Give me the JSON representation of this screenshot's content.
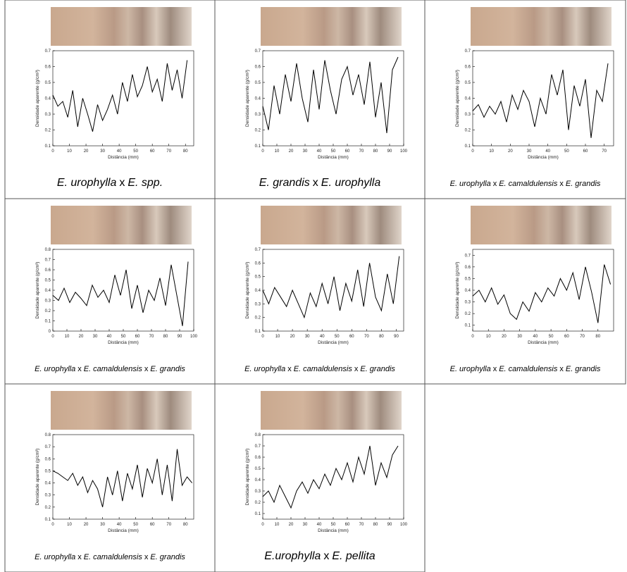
{
  "chart_data": [
    {
      "type": "line",
      "x_label": "Distância (mm)",
      "y_label": "Densidade aparente (g/cm³)",
      "caption": [
        "E. urophylla",
        "x",
        "E. spp."
      ],
      "color": "#000000",
      "x": [
        0,
        3,
        6,
        9,
        12,
        15,
        18,
        21,
        24,
        27,
        30,
        33,
        36,
        39,
        42,
        45,
        48,
        51,
        54,
        57,
        60,
        63,
        66,
        69,
        72,
        75,
        78,
        81
      ],
      "values": [
        0.42,
        0.35,
        0.38,
        0.28,
        0.45,
        0.22,
        0.4,
        0.3,
        0.19,
        0.36,
        0.26,
        0.33,
        0.42,
        0.3,
        0.5,
        0.38,
        0.55,
        0.41,
        0.48,
        0.6,
        0.44,
        0.52,
        0.38,
        0.62,
        0.45,
        0.58,
        0.4,
        0.64
      ],
      "xlim": [
        0,
        85
      ],
      "xticks": [
        0,
        10,
        20,
        30,
        40,
        50,
        60,
        70,
        80
      ],
      "ylim": [
        0.1,
        0.7
      ],
      "yticks": [
        0.1,
        0.2,
        0.3,
        0.4,
        0.5,
        0.6,
        0.7
      ]
    },
    {
      "type": "line",
      "x_label": "Distância (mm)",
      "y_label": "Densidade aparente (g/cm³)",
      "caption": [
        "E. grandis",
        "x",
        "E. urophylla"
      ],
      "color": "#000000",
      "x": [
        0,
        4,
        8,
        12,
        16,
        20,
        24,
        28,
        32,
        36,
        40,
        44,
        48,
        52,
        56,
        60,
        64,
        68,
        72,
        76,
        80,
        84,
        88,
        92,
        96
      ],
      "values": [
        0.35,
        0.2,
        0.48,
        0.3,
        0.55,
        0.38,
        0.62,
        0.4,
        0.25,
        0.58,
        0.33,
        0.64,
        0.45,
        0.3,
        0.52,
        0.6,
        0.42,
        0.55,
        0.36,
        0.63,
        0.28,
        0.5,
        0.18,
        0.58,
        0.66
      ],
      "xlim": [
        0,
        100
      ],
      "xticks": [
        0,
        10,
        20,
        30,
        40,
        50,
        60,
        70,
        80,
        90,
        100
      ],
      "ylim": [
        0.1,
        0.7
      ],
      "yticks": [
        0.1,
        0.2,
        0.3,
        0.4,
        0.5,
        0.6,
        0.7
      ]
    },
    {
      "type": "line",
      "x_label": "Distância (mm)",
      "y_label": "Densidade aparente (g/cm³)",
      "caption": [
        "E. urophylla",
        "x",
        "E. camaldulensis",
        "x",
        "E. grandis"
      ],
      "color": "#000000",
      "x": [
        0,
        3,
        6,
        9,
        12,
        15,
        18,
        21,
        24,
        27,
        30,
        33,
        36,
        39,
        42,
        45,
        48,
        51,
        54,
        57,
        60,
        63,
        66,
        69,
        72
      ],
      "values": [
        0.32,
        0.36,
        0.28,
        0.35,
        0.3,
        0.38,
        0.25,
        0.42,
        0.33,
        0.45,
        0.38,
        0.22,
        0.4,
        0.3,
        0.55,
        0.42,
        0.58,
        0.2,
        0.48,
        0.35,
        0.52,
        0.15,
        0.45,
        0.38,
        0.62
      ],
      "xlim": [
        0,
        75
      ],
      "xticks": [
        0,
        10,
        20,
        30,
        40,
        50,
        60,
        70
      ],
      "ylim": [
        0.1,
        0.7
      ],
      "yticks": [
        0.1,
        0.2,
        0.3,
        0.4,
        0.5,
        0.6,
        0.7
      ]
    },
    {
      "type": "line",
      "x_label": "Distância (mm)",
      "y_label": "Densidade aparente (g/cm³)",
      "caption": [
        "E. urophylla",
        "x",
        "E. camaldulensis",
        "x",
        "E. grandis"
      ],
      "color": "#000000",
      "x": [
        0,
        4,
        8,
        12,
        16,
        20,
        24,
        28,
        32,
        36,
        40,
        44,
        48,
        52,
        56,
        60,
        64,
        68,
        72,
        76,
        80,
        84,
        88,
        92,
        96
      ],
      "values": [
        0.35,
        0.3,
        0.42,
        0.28,
        0.38,
        0.32,
        0.25,
        0.45,
        0.33,
        0.4,
        0.28,
        0.55,
        0.35,
        0.6,
        0.22,
        0.45,
        0.18,
        0.4,
        0.3,
        0.52,
        0.25,
        0.65,
        0.35,
        0.05,
        0.68
      ],
      "xlim": [
        0,
        100
      ],
      "xticks": [
        0,
        10,
        20,
        30,
        40,
        50,
        60,
        70,
        80,
        90,
        100
      ],
      "ylim": [
        0,
        0.8
      ],
      "yticks": [
        0,
        0.1,
        0.2,
        0.3,
        0.4,
        0.5,
        0.6,
        0.7,
        0.8
      ]
    },
    {
      "type": "line",
      "x_label": "Distância (mm)",
      "y_label": "Densidade aparente (g/cm³)",
      "caption": [
        "E. urophylla",
        "x",
        "E. camaldulensis",
        "x",
        "E. grandis"
      ],
      "color": "#000000",
      "x": [
        0,
        4,
        8,
        12,
        16,
        20,
        24,
        28,
        32,
        36,
        40,
        44,
        48,
        52,
        56,
        60,
        64,
        68,
        72,
        76,
        80,
        84,
        88,
        92
      ],
      "values": [
        0.4,
        0.3,
        0.42,
        0.35,
        0.28,
        0.4,
        0.3,
        0.2,
        0.38,
        0.28,
        0.45,
        0.3,
        0.5,
        0.25,
        0.45,
        0.32,
        0.55,
        0.28,
        0.6,
        0.35,
        0.25,
        0.52,
        0.3,
        0.65
      ],
      "xlim": [
        0,
        95
      ],
      "xticks": [
        0,
        10,
        20,
        30,
        40,
        50,
        60,
        70,
        80,
        90
      ],
      "ylim": [
        0.1,
        0.7
      ],
      "yticks": [
        0.1,
        0.2,
        0.3,
        0.4,
        0.5,
        0.6,
        0.7
      ]
    },
    {
      "type": "line",
      "x_label": "Distância (mm)",
      "y_label": "Densidade aparente (g/cm³)",
      "caption": [
        "E. urophylla",
        "x",
        "E. camaldulensis",
        "x",
        "E. grandis"
      ],
      "color": "#000000",
      "x": [
        0,
        4,
        8,
        12,
        16,
        20,
        24,
        28,
        32,
        36,
        40,
        44,
        48,
        52,
        56,
        60,
        64,
        68,
        72,
        76,
        80,
        84,
        88
      ],
      "values": [
        0.35,
        0.4,
        0.3,
        0.42,
        0.28,
        0.36,
        0.2,
        0.15,
        0.3,
        0.22,
        0.38,
        0.3,
        0.42,
        0.35,
        0.5,
        0.4,
        0.55,
        0.32,
        0.6,
        0.38,
        0.12,
        0.62,
        0.45
      ],
      "xlim": [
        0,
        90
      ],
      "xticks": [
        0,
        10,
        20,
        30,
        40,
        50,
        60,
        70,
        80
      ],
      "ylim": [
        0.05,
        0.75
      ],
      "yticks": [
        0.1,
        0.2,
        0.3,
        0.4,
        0.5,
        0.6,
        0.7
      ]
    },
    {
      "type": "line",
      "x_label": "Distância (mm)",
      "y_label": "Densidade aparente (g/cm³)",
      "caption": [
        "E. urophylla",
        "x",
        "E. camaldulensis",
        "x",
        "E. grandis"
      ],
      "color": "#000000",
      "x": [
        0,
        3,
        6,
        9,
        12,
        15,
        18,
        21,
        24,
        27,
        30,
        33,
        36,
        39,
        42,
        45,
        48,
        51,
        54,
        57,
        60,
        63,
        66,
        69,
        72,
        75,
        78,
        81,
        84
      ],
      "values": [
        0.5,
        0.48,
        0.45,
        0.42,
        0.48,
        0.38,
        0.45,
        0.32,
        0.42,
        0.35,
        0.2,
        0.45,
        0.3,
        0.5,
        0.25,
        0.48,
        0.35,
        0.55,
        0.28,
        0.52,
        0.4,
        0.6,
        0.3,
        0.55,
        0.25,
        0.68,
        0.38,
        0.45,
        0.4
      ],
      "xlim": [
        0,
        85
      ],
      "xticks": [
        0,
        10,
        20,
        30,
        40,
        50,
        60,
        70,
        80
      ],
      "ylim": [
        0.1,
        0.8
      ],
      "yticks": [
        0.1,
        0.2,
        0.3,
        0.4,
        0.5,
        0.6,
        0.7,
        0.8
      ]
    },
    {
      "type": "line",
      "x_label": "Distância (mm)",
      "y_label": "Densidade aparente (g/cm³)",
      "caption": [
        "E.urophylla",
        "x",
        "E. pellita"
      ],
      "color": "#000000",
      "x": [
        0,
        4,
        8,
        12,
        16,
        20,
        24,
        28,
        32,
        36,
        40,
        44,
        48,
        52,
        56,
        60,
        64,
        68,
        72,
        76,
        80,
        84,
        88,
        92,
        96
      ],
      "values": [
        0.25,
        0.3,
        0.2,
        0.35,
        0.25,
        0.15,
        0.3,
        0.38,
        0.28,
        0.4,
        0.32,
        0.45,
        0.35,
        0.5,
        0.4,
        0.55,
        0.38,
        0.6,
        0.45,
        0.7,
        0.35,
        0.55,
        0.42,
        0.62,
        0.7
      ],
      "xlim": [
        0,
        100
      ],
      "xticks": [
        0,
        10,
        20,
        30,
        40,
        50,
        60,
        70,
        80,
        90,
        100
      ],
      "ylim": [
        0.05,
        0.8
      ],
      "yticks": [
        0.1,
        0.2,
        0.3,
        0.4,
        0.5,
        0.6,
        0.7,
        0.8
      ]
    }
  ]
}
